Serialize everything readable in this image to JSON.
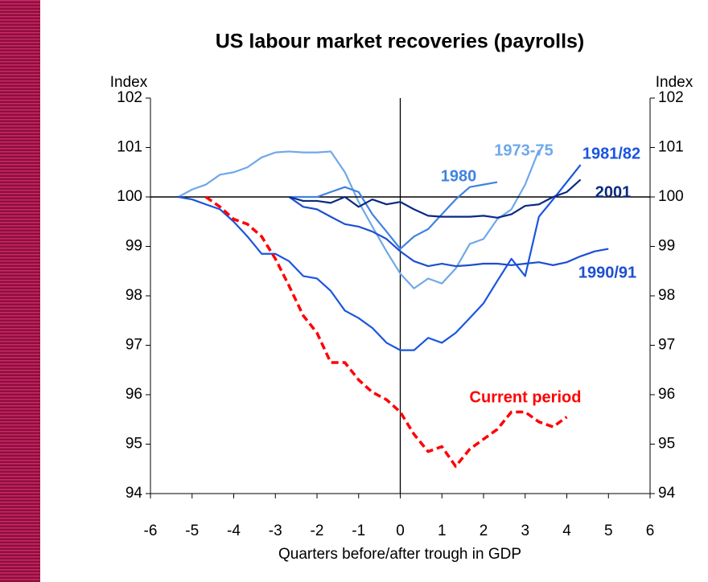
{
  "chart_data": {
    "type": "line",
    "title": "US labour market recoveries (payrolls)",
    "xlabel": "Quarters before/after trough in GDP",
    "ylabel": "Index",
    "xlim": [
      -6,
      6
    ],
    "xticks": [
      -6,
      -5,
      -4,
      -3,
      -2,
      -1,
      0,
      1,
      2,
      3,
      4,
      5,
      6
    ],
    "ylim": [
      94,
      102
    ],
    "yticks": [
      94,
      95,
      96,
      97,
      98,
      99,
      100,
      101,
      102
    ],
    "series": [
      {
        "name": "1973-75",
        "color": "#6fa8e8",
        "x": [
          -5.33,
          -5,
          -4.67,
          -4.33,
          -4,
          -3.67,
          -3.33,
          -3,
          -2.67,
          -2.33,
          -2,
          -1.67,
          -1.33,
          -1,
          -0.67,
          -0.33,
          0,
          0.33,
          0.67,
          1,
          1.33,
          1.67,
          2,
          2.33,
          2.67,
          3,
          3.33
        ],
        "values": [
          100,
          100.15,
          100.25,
          100.45,
          100.5,
          100.6,
          100.8,
          100.9,
          100.92,
          100.9,
          100.9,
          100.92,
          100.5,
          99.9,
          99.4,
          98.9,
          98.45,
          98.15,
          98.35,
          98.25,
          98.55,
          99.05,
          99.15,
          99.55,
          99.75,
          100.25,
          100.95
        ]
      },
      {
        "name": "1980",
        "color": "#3f83e0",
        "x": [
          -2.67,
          -2.33,
          -2,
          -1.67,
          -1.33,
          -1,
          -0.67,
          -0.33,
          0,
          0.33,
          0.67,
          1,
          1.33,
          1.67,
          2,
          2.33
        ],
        "values": [
          100,
          100,
          100,
          100.1,
          100.2,
          100.1,
          99.65,
          99.3,
          98.95,
          99.2,
          99.35,
          99.65,
          99.95,
          100.2,
          100.25,
          100.3
        ]
      },
      {
        "name": "1981/82",
        "color": "#1a55e0",
        "x": [
          -5.33,
          -5,
          -4.67,
          -4.33,
          -4,
          -3.67,
          -3.33,
          -3,
          -2.67,
          -2.33,
          -2,
          -1.67,
          -1.33,
          -1,
          -0.67,
          -0.33,
          0,
          0.33,
          0.67,
          1,
          1.33,
          1.67,
          2,
          2.33,
          2.67,
          3,
          3.33,
          3.67,
          4,
          4.33
        ],
        "values": [
          100,
          99.95,
          99.85,
          99.75,
          99.5,
          99.2,
          98.85,
          98.85,
          98.7,
          98.4,
          98.35,
          98.1,
          97.7,
          97.55,
          97.35,
          97.05,
          96.9,
          96.9,
          97.15,
          97.05,
          97.25,
          97.55,
          97.85,
          98.3,
          98.75,
          98.4,
          99.6,
          99.95,
          100.3,
          100.65
        ]
      },
      {
        "name": "1990/91",
        "color": "#1d4fd0",
        "x": [
          -2.67,
          -2.33,
          -2,
          -1.67,
          -1.33,
          -1,
          -0.67,
          -0.33,
          0,
          0.33,
          0.67,
          1,
          1.33,
          1.67,
          2,
          2.33,
          2.67,
          3,
          3.33,
          3.67,
          4,
          4.33,
          4.67,
          5
        ],
        "values": [
          100,
          99.8,
          99.75,
          99.6,
          99.45,
          99.4,
          99.3,
          99.15,
          98.9,
          98.7,
          98.6,
          98.65,
          98.6,
          98.62,
          98.65,
          98.65,
          98.62,
          98.65,
          98.68,
          98.62,
          98.68,
          98.8,
          98.9,
          98.95
        ]
      },
      {
        "name": "2001",
        "color": "#0a2a80",
        "x": [
          -2.67,
          -2.33,
          -2,
          -1.67,
          -1.33,
          -1,
          -0.67,
          -0.33,
          0,
          0.33,
          0.67,
          1,
          1.33,
          1.67,
          2,
          2.33,
          2.67,
          3,
          3.33,
          3.67,
          4,
          4.33
        ],
        "values": [
          100,
          99.92,
          99.92,
          99.88,
          100,
          99.8,
          99.95,
          99.85,
          99.9,
          99.75,
          99.62,
          99.6,
          99.6,
          99.6,
          99.62,
          99.58,
          99.65,
          99.82,
          99.85,
          100,
          100.1,
          100.35
        ]
      },
      {
        "name": "Current period",
        "color": "#ff0000",
        "dashed": true,
        "x": [
          -4.67,
          -4.33,
          -4,
          -3.67,
          -3.33,
          -3,
          -2.67,
          -2.33,
          -2,
          -1.67,
          -1.33,
          -1,
          -0.67,
          -0.33,
          0,
          0.33,
          0.67,
          1,
          1.33,
          1.67,
          2,
          2.33,
          2.67,
          3,
          3.33,
          3.67,
          4
        ],
        "values": [
          100,
          99.8,
          99.55,
          99.45,
          99.2,
          98.75,
          98.2,
          97.6,
          97.25,
          96.65,
          96.65,
          96.3,
          96.05,
          95.9,
          95.65,
          95.2,
          94.85,
          94.95,
          94.55,
          94.9,
          95.1,
          95.3,
          95.65,
          95.65,
          95.45,
          95.35,
          95.55
        ]
      }
    ]
  }
}
